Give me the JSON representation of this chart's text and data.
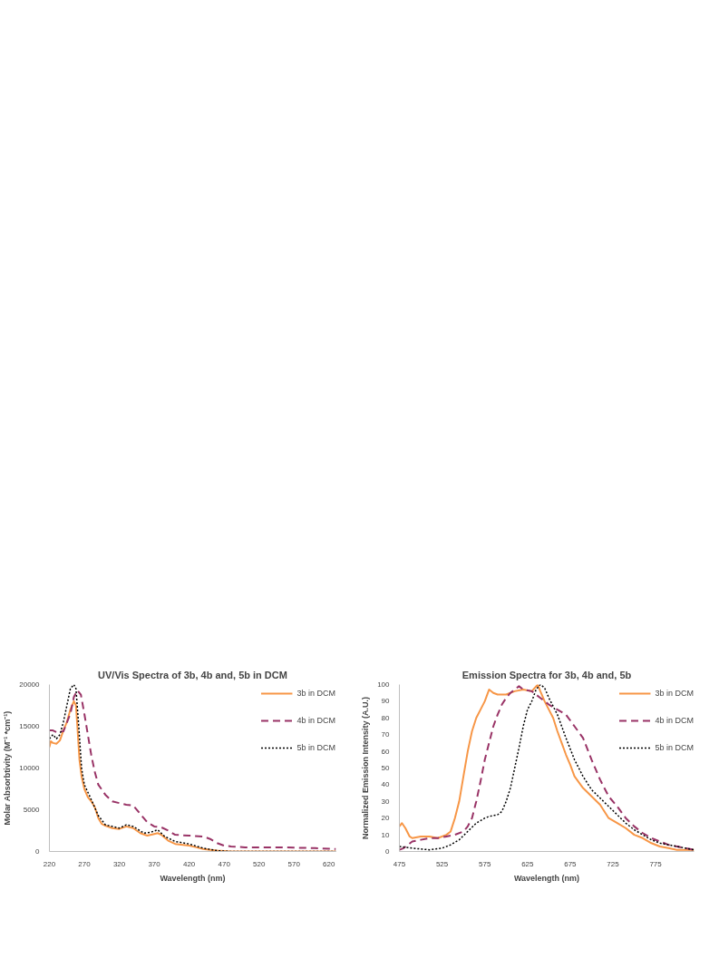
{
  "chart_data": [
    {
      "type": "line",
      "title": "UV/Vis Spectra of 3b, 4b and, 5b in DCM",
      "xlabel": "Wavelength (nm)",
      "ylabel": "Molar Absorbtivity (M⁻¹ *cm⁻¹)",
      "xlim": [
        220,
        630
      ],
      "xticks": [
        220,
        270,
        320,
        370,
        420,
        470,
        520,
        570,
        620
      ],
      "ylim": [
        0,
        20000
      ],
      "yticks": [
        0,
        5000,
        10000,
        15000,
        20000
      ],
      "grid": false,
      "legend": "top right",
      "series": [
        {
          "name": "3b in DCM",
          "color": "#f79646",
          "line_style": "solid",
          "x": [
            220,
            222,
            225,
            230,
            235,
            240,
            245,
            250,
            255,
            258,
            260,
            263,
            266,
            270,
            275,
            280,
            285,
            290,
            295,
            300,
            310,
            320,
            330,
            340,
            350,
            360,
            370,
            375,
            380,
            390,
            400,
            420,
            430,
            440,
            450,
            460,
            480,
            630
          ],
          "values": [
            12500,
            13200,
            13000,
            12900,
            13300,
            14500,
            15500,
            17000,
            18000,
            17500,
            15000,
            11000,
            9000,
            7500,
            6500,
            6000,
            5300,
            4000,
            3300,
            3100,
            2800,
            2700,
            3000,
            2800,
            2200,
            1900,
            2100,
            2200,
            2000,
            1300,
            900,
            700,
            500,
            300,
            200,
            100,
            0,
            0
          ]
        },
        {
          "name": "4b in DCM",
          "color": "#993366",
          "line_style": "dashed",
          "x": [
            220,
            225,
            230,
            240,
            250,
            255,
            260,
            265,
            270,
            275,
            280,
            285,
            290,
            300,
            310,
            320,
            330,
            340,
            350,
            360,
            370,
            380,
            390,
            400,
            420,
            440,
            450,
            460,
            470,
            480,
            500,
            550,
            600,
            630
          ],
          "values": [
            14500,
            14500,
            14300,
            14400,
            16500,
            18500,
            19300,
            18800,
            16500,
            14000,
            11500,
            9500,
            8000,
            6800,
            6000,
            5800,
            5600,
            5500,
            4500,
            3500,
            3000,
            2900,
            2500,
            2000,
            1900,
            1800,
            1500,
            1000,
            700,
            600,
            500,
            500,
            400,
            300
          ]
        },
        {
          "name": "5b in DCM",
          "color": "#000000",
          "line_style": "dotted",
          "x": [
            220,
            225,
            230,
            235,
            240,
            245,
            250,
            255,
            258,
            262,
            266,
            270,
            280,
            290,
            300,
            320,
            330,
            340,
            355,
            365,
            375,
            385,
            400,
            420,
            440,
            460,
            480,
            630
          ],
          "values": [
            13500,
            14000,
            13500,
            14000,
            15500,
            17500,
            19500,
            20000,
            19500,
            15000,
            10000,
            8000,
            6200,
            4300,
            3200,
            2800,
            3200,
            3000,
            2200,
            2300,
            2600,
            1800,
            1200,
            900,
            400,
            100,
            0,
            0
          ]
        }
      ]
    },
    {
      "type": "line",
      "title": "Emission Spectra for 3b, 4b and, 5b",
      "xlabel": "Wavelength (nm)",
      "ylabel": "Normalized Emission Intensity (A.U.)",
      "xlim": [
        475,
        820
      ],
      "xticks": [
        475,
        525,
        575,
        625,
        675,
        725,
        775
      ],
      "ylim": [
        0,
        100
      ],
      "yticks": [
        0,
        10,
        20,
        30,
        40,
        50,
        60,
        70,
        80,
        90,
        100
      ],
      "grid": false,
      "legend": "top right",
      "series": [
        {
          "name": "3b in DCM",
          "color": "#f79646",
          "line_style": "solid",
          "x": [
            475,
            478,
            482,
            487,
            490,
            500,
            510,
            520,
            530,
            535,
            540,
            545,
            550,
            555,
            560,
            565,
            570,
            575,
            580,
            585,
            590,
            600,
            610,
            620,
            630,
            637,
            640,
            645,
            650,
            655,
            660,
            665,
            670,
            675,
            680,
            690,
            700,
            710,
            720,
            730,
            740,
            750,
            760,
            770,
            780,
            790,
            800,
            820
          ],
          "values": [
            15,
            17,
            14,
            9,
            8,
            9,
            9,
            8,
            10,
            12,
            20,
            30,
            45,
            60,
            72,
            80,
            85,
            90,
            97,
            95,
            94,
            94,
            96,
            97,
            96,
            100,
            96,
            90,
            85,
            80,
            72,
            65,
            58,
            52,
            45,
            38,
            33,
            28,
            20,
            17,
            14,
            10,
            8,
            5,
            3,
            2,
            1,
            1
          ]
        },
        {
          "name": "4b in DCM",
          "color": "#993366",
          "line_style": "dashed",
          "x": [
            475,
            480,
            490,
            500,
            510,
            520,
            530,
            540,
            550,
            555,
            560,
            565,
            570,
            575,
            580,
            585,
            590,
            595,
            600,
            605,
            615,
            620,
            630,
            640,
            650,
            660,
            670,
            680,
            690,
            700,
            710,
            720,
            730,
            740,
            750,
            760,
            770,
            780,
            790,
            800,
            810,
            820
          ],
          "values": [
            1,
            2,
            6,
            7,
            8,
            8,
            9,
            10,
            12,
            15,
            20,
            30,
            42,
            55,
            65,
            75,
            82,
            88,
            92,
            95,
            99,
            97,
            96,
            92,
            88,
            85,
            82,
            75,
            68,
            55,
            43,
            33,
            27,
            20,
            15,
            11,
            8,
            6,
            4,
            3,
            2,
            1
          ]
        },
        {
          "name": "5b in DCM",
          "color": "#000000",
          "line_style": "dotted",
          "x": [
            475,
            490,
            510,
            525,
            535,
            545,
            555,
            565,
            575,
            580,
            590,
            595,
            600,
            605,
            610,
            615,
            620,
            625,
            630,
            635,
            640,
            645,
            650,
            655,
            660,
            665,
            670,
            680,
            690,
            700,
            710,
            720,
            730,
            740,
            750,
            760,
            770,
            780,
            790,
            800,
            810,
            820
          ],
          "values": [
            3,
            2,
            1,
            2,
            4,
            7,
            12,
            17,
            20,
            21,
            22,
            24,
            30,
            38,
            50,
            62,
            75,
            85,
            90,
            97,
            100,
            98,
            92,
            87,
            82,
            75,
            68,
            55,
            45,
            37,
            32,
            27,
            22,
            17,
            13,
            10,
            7,
            5,
            4,
            3,
            2,
            1
          ]
        }
      ]
    }
  ]
}
